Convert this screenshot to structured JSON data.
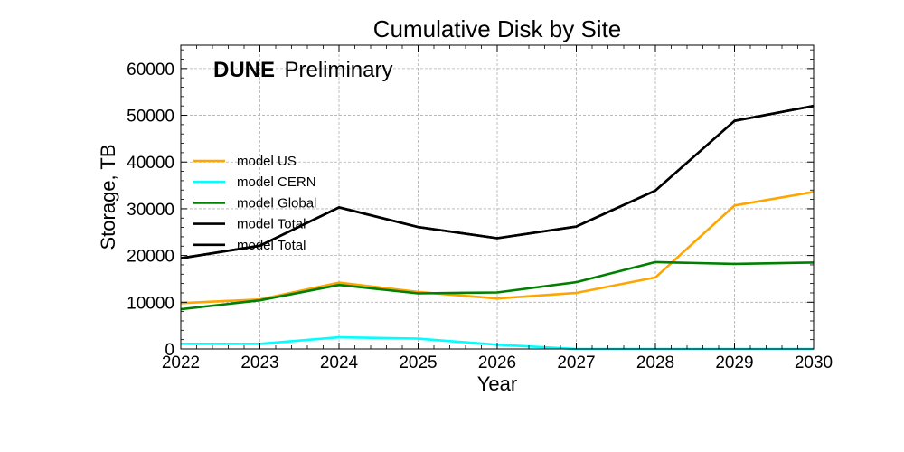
{
  "chart_data": {
    "type": "line",
    "title": "Cumulative Disk by Site",
    "xlabel": "Year",
    "ylabel": "Storage, TB",
    "watermark": {
      "bold": "DUNE",
      "normal": "Preliminary"
    },
    "xlim": [
      2022,
      2030
    ],
    "ylim": [
      0,
      65000
    ],
    "x": [
      2022,
      2023,
      2024,
      2025,
      2026,
      2027,
      2028,
      2029,
      2030
    ],
    "xticks": [
      "2022",
      "2023",
      "2024",
      "2025",
      "2026",
      "2027",
      "2028",
      "2029",
      "2030"
    ],
    "yticks": [
      "0",
      "10000",
      "20000",
      "30000",
      "40000",
      "50000",
      "60000"
    ],
    "ytick_values": [
      0,
      10000,
      20000,
      30000,
      40000,
      50000,
      60000
    ],
    "grid": true,
    "legend_position": "center-left",
    "series": [
      {
        "name": "model US",
        "color": "#FFA500",
        "values": [
          9800,
          10600,
          14200,
          12200,
          10800,
          12000,
          15300,
          30700,
          33600
        ]
      },
      {
        "name": "model CERN",
        "color": "#00FFFF",
        "values": [
          1100,
          1100,
          2500,
          2200,
          900,
          0,
          0,
          0,
          0
        ]
      },
      {
        "name": "model Global",
        "color": "#008000",
        "values": [
          8500,
          10400,
          13700,
          11900,
          12100,
          14300,
          18600,
          18200,
          18500
        ]
      },
      {
        "name": "model Total",
        "color": "#000000",
        "values": [
          19400,
          22100,
          30300,
          26100,
          23700,
          26200,
          33900,
          48800,
          52000
        ]
      },
      {
        "name": "model Total",
        "color": "#000000",
        "values": [
          19400,
          22100,
          30300,
          26100,
          23700,
          26200,
          33900,
          48800,
          52000
        ]
      }
    ]
  }
}
